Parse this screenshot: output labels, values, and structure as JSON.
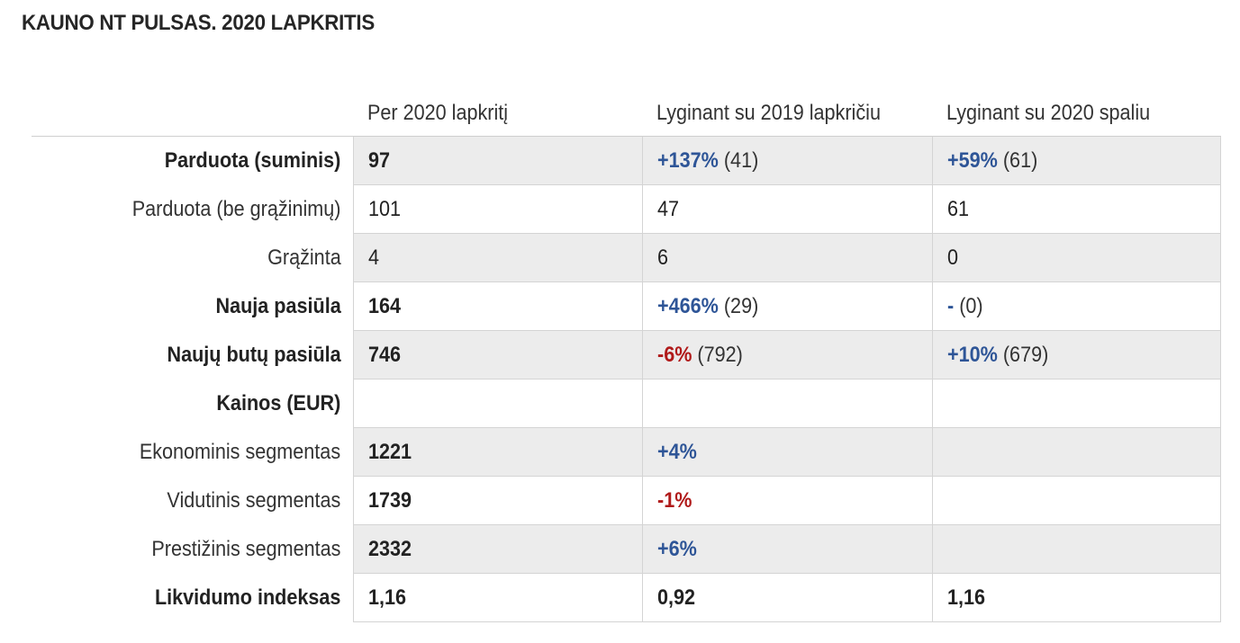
{
  "title": "KAUNO NT PULSAS. 2020 LAPKRITIS",
  "colors": {
    "positive": "#2e5597",
    "negative": "#b01a1a",
    "row_shade": "#ececec"
  },
  "columns": [
    "",
    "Per 2020 lapkritį",
    "Lyginant su 2019 lapkričiu",
    "Lyginant su 2020 spaliu"
  ],
  "rows": [
    {
      "label": "Parduota (suminis)",
      "bold": true,
      "shade": true,
      "cells": [
        {
          "value": "97"
        },
        {
          "delta": "+137%",
          "dir": "pos",
          "ref": " (41)"
        },
        {
          "delta": "+59%",
          "dir": "pos",
          "ref": " (61)"
        }
      ]
    },
    {
      "label": "Parduota (be grąžinimų)",
      "bold": false,
      "shade": false,
      "cells": [
        {
          "value": "101"
        },
        {
          "value": "47"
        },
        {
          "value": "61"
        }
      ]
    },
    {
      "label": "Grąžinta",
      "bold": false,
      "shade": true,
      "cells": [
        {
          "value": "4"
        },
        {
          "value": "6"
        },
        {
          "value": "0"
        }
      ]
    },
    {
      "label": "Nauja pasiūla",
      "bold": true,
      "shade": false,
      "cells": [
        {
          "value": "164"
        },
        {
          "delta": "+466%",
          "dir": "pos",
          "ref": " (29)"
        },
        {
          "delta": "-",
          "dir": "pos",
          "ref": " (0)"
        }
      ]
    },
    {
      "label": "Naujų butų pasiūla",
      "bold": true,
      "shade": true,
      "cells": [
        {
          "value": "746"
        },
        {
          "delta": "-6%",
          "dir": "neg",
          "ref": " (792)"
        },
        {
          "delta": "+10%",
          "dir": "pos",
          "ref": " (679)"
        }
      ]
    },
    {
      "label": "Kainos (EUR)",
      "bold": true,
      "shade": false,
      "cells": [
        {
          "value": ""
        },
        {
          "value": ""
        },
        {
          "value": ""
        }
      ]
    },
    {
      "label": "Ekonominis segmentas",
      "bold": false,
      "shade": true,
      "cells": [
        {
          "value": "1221"
        },
        {
          "delta": "+4%",
          "dir": "pos",
          "ref": ""
        },
        {
          "value": ""
        }
      ]
    },
    {
      "label": "Vidutinis segmentas",
      "bold": false,
      "shade": false,
      "cells": [
        {
          "value": "1739"
        },
        {
          "delta": "-1%",
          "dir": "neg",
          "ref": ""
        },
        {
          "value": ""
        }
      ]
    },
    {
      "label": "Prestižinis segmentas",
      "bold": false,
      "shade": true,
      "cells": [
        {
          "value": "2332"
        },
        {
          "delta": "+6%",
          "dir": "pos",
          "ref": ""
        },
        {
          "value": ""
        }
      ]
    },
    {
      "label": "Likvidumo indeksas",
      "bold": true,
      "shade": false,
      "cells": [
        {
          "value": "1,16"
        },
        {
          "value": "0,92"
        },
        {
          "value": "1,16"
        }
      ]
    }
  ]
}
